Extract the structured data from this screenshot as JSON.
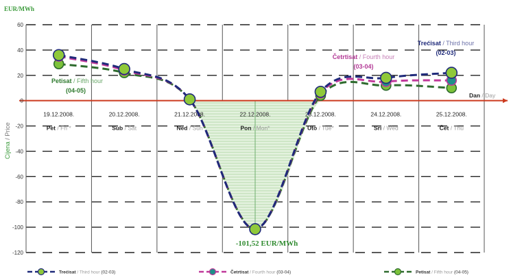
{
  "chart_data": {
    "type": "line",
    "y_unit_label": "EUR/MWh",
    "ylabel": {
      "hr": "Cijena",
      "sep": " / ",
      "en": "Price"
    },
    "xlabel": {
      "hr": "Dan",
      "sep": " / ",
      "en": "Day"
    },
    "ylim": [
      -120,
      60
    ],
    "yticks": [
      "60",
      "40",
      "20",
      "0",
      "-20",
      "-40",
      "-60",
      "-80",
      "-100",
      "-120"
    ],
    "grid": true,
    "legend_position": "bottom",
    "categories": [
      {
        "date": "19.12.2008.",
        "hr": "Pet",
        "en": "Fri *"
      },
      {
        "date": "20.12.2008.",
        "hr": "Sub",
        "en": "Sat"
      },
      {
        "date": "21.12.2008.",
        "hr": "Ned",
        "en": "Sun"
      },
      {
        "date": "22.12.2008.",
        "hr": "Pon",
        "en": "Mon*"
      },
      {
        "date": "23.12.2008.",
        "hr": "Uto",
        "en": "Tue*"
      },
      {
        "date": "24.12.2008.",
        "hr": "Sri",
        "en": "Wed"
      },
      {
        "date": "25.12.2008.",
        "hr": "Čet",
        "en": "Thu"
      }
    ],
    "series": [
      {
        "name": "Trećisat / Third hour (02-03)",
        "color": "#1f2a7a",
        "marker": "#8fc93a",
        "values": [
          36,
          25,
          1,
          -101.52,
          7,
          18,
          22
        ]
      },
      {
        "name": "Četrtisat / Fourth hour (03-04)",
        "color": "#c0399a",
        "marker": "#1e8f8a",
        "values": [
          35,
          24,
          1,
          -101.52,
          6,
          15,
          16
        ]
      },
      {
        "name": "Petisat / Fifth hour (04-05)",
        "color": "#2e6b2e",
        "marker": "#7cc23a",
        "values": [
          29,
          22,
          1,
          -101.52,
          4,
          12,
          10
        ]
      }
    ],
    "annotations": {
      "third": {
        "hr": "Trećisat",
        "sep": " / ",
        "en": "Third hour",
        "range": "(02-03)"
      },
      "fourth": {
        "hr": "Četrtisat",
        "sep": " / ",
        "en": "Fourth hour",
        "range": "(03-04)"
      },
      "fifth": {
        "hr": "Petisat",
        "sep": " / ",
        "en": "Fifth hour",
        "range": "(04-05)"
      },
      "min_value": "-101,52 EUR/MWh"
    },
    "legend": [
      {
        "hr": "Trećisat",
        "en": "Third hour",
        "range": "(02-03)"
      },
      {
        "hr": "Četrtisat",
        "en": "Fourth hour",
        "range": "(03-04)"
      },
      {
        "hr": "Petisat",
        "en": "Fifth hour",
        "range": "(04-05)"
      }
    ],
    "colors": {
      "axis_zero": "#cc3a1e",
      "grid": "#222222",
      "shade": "#c8e4c0",
      "label_green": "#3a9a3a"
    }
  }
}
